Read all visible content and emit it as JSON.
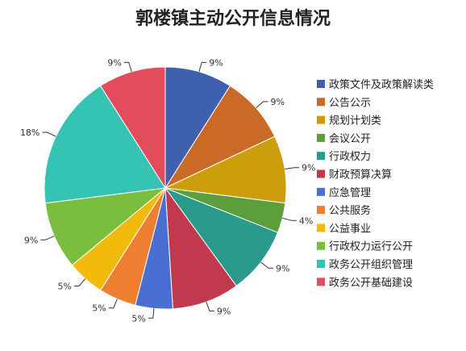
{
  "chart_data": {
    "type": "pie",
    "title": "郭楼镇主动公开信息情况",
    "legend_position": "right",
    "slices": [
      {
        "label": "政策文件及政策解读类",
        "value": 9,
        "display": "9%",
        "color": "#3F5FAF"
      },
      {
        "label": "公告公示",
        "value": 9,
        "display": "9%",
        "color": "#CB6A27"
      },
      {
        "label": "规划计划类",
        "value": 9,
        "display": "9%",
        "color": "#CC9E0B"
      },
      {
        "label": "会议公开",
        "value": 4,
        "display": "4%",
        "color": "#5C9E3B"
      },
      {
        "label": "行政权力",
        "value": 9,
        "display": "9%",
        "color": "#2A9A8C"
      },
      {
        "label": "财政预算决算",
        "value": 9,
        "display": "9%",
        "color": "#C0394C"
      },
      {
        "label": "应急管理",
        "value": 5,
        "display": "5%",
        "color": "#4A6FD2"
      },
      {
        "label": "公共服务",
        "value": 5,
        "display": "5%",
        "color": "#EE7E30"
      },
      {
        "label": "公益事业",
        "value": 5,
        "display": "5%",
        "color": "#F2BB0B"
      },
      {
        "label": "行政权力运行公开",
        "value": 9,
        "display": "9%",
        "color": "#7ABD3F"
      },
      {
        "label": "政务公开组织管理",
        "value": 18,
        "display": "18%",
        "color": "#35C3B3"
      },
      {
        "label": "政务公开基础建设",
        "value": 9,
        "display": "9%",
        "color": "#E24C5C"
      }
    ]
  }
}
